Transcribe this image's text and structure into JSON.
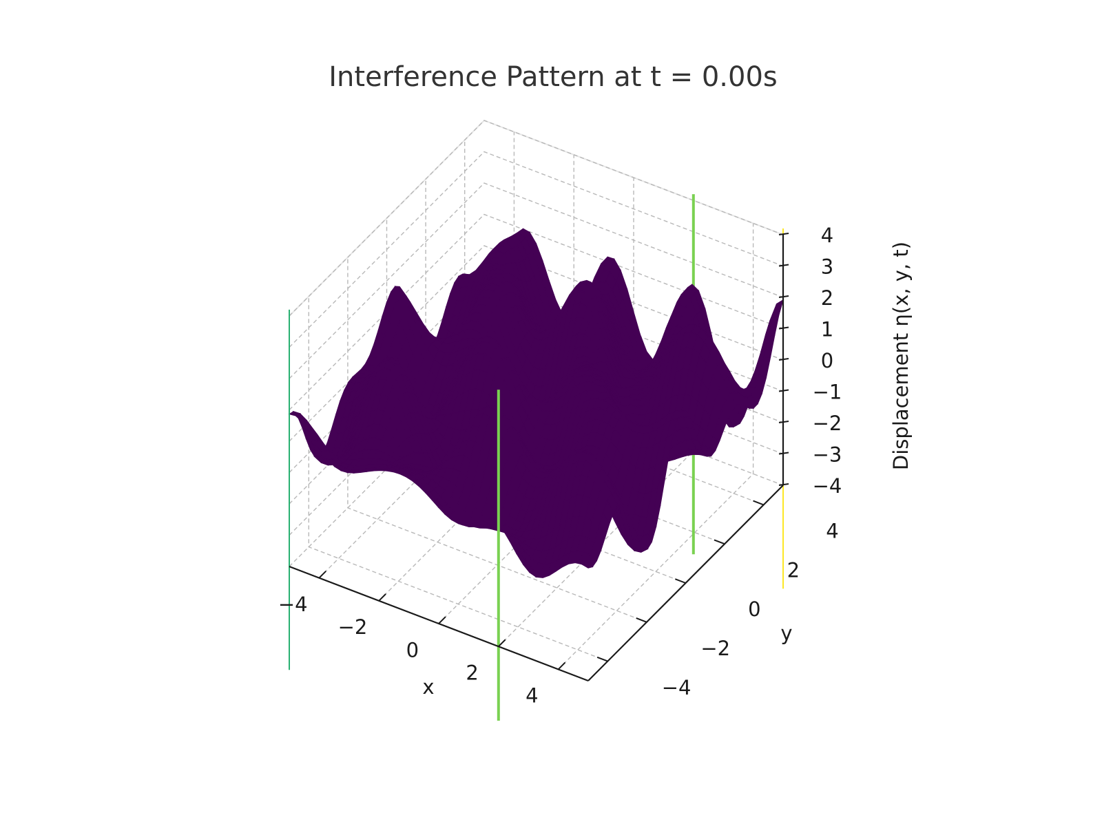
{
  "chart_data": {
    "type": "surface",
    "title": "Interference Pattern at t = 0.00s",
    "xlabel": "x",
    "ylabel": "y",
    "zlabel": "Displacement η(x, y, t)",
    "xlim": [
      -5,
      5
    ],
    "ylim": [
      -5,
      5
    ],
    "zlim": [
      -4,
      4
    ],
    "x_ticks": [
      -4,
      -2,
      0,
      2,
      4
    ],
    "y_ticks": [
      -4,
      -2,
      0,
      2,
      4
    ],
    "z_ticks": [
      -4,
      -3,
      -2,
      -1,
      0,
      1,
      2,
      3,
      4
    ],
    "x_tick_labels": [
      "−4",
      "−2",
      "0",
      "2",
      "4"
    ],
    "y_tick_labels": [
      "−4",
      "−2",
      "0",
      "2",
      "4"
    ],
    "z_tick_labels": [
      "−4",
      "−3",
      "−2",
      "−1",
      "0",
      "1",
      "2",
      "3",
      "4"
    ],
    "grid": true,
    "surface_color": "#440154",
    "colormap": "viridis",
    "vertical_lines": [
      {
        "x": -5,
        "y": -5,
        "color": "#29b172"
      },
      {
        "x": 2,
        "y": 5,
        "color": "#7ad151"
      },
      {
        "x": 2,
        "y": -5,
        "color": "#7ad151"
      },
      {
        "x": 5,
        "y": 5,
        "color": "#fde725"
      }
    ]
  }
}
